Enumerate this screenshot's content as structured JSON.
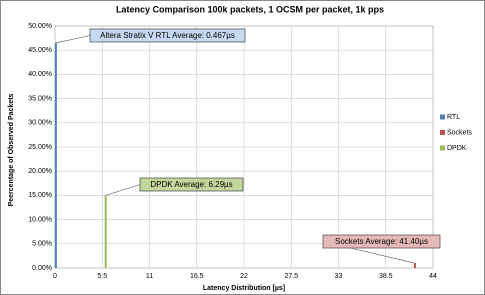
{
  "chart_data": {
    "type": "bar",
    "title": "Latency Comparison 100k packets, 1 OCSM per packet, 1k pps",
    "x_label": "Latency Distribution [µs]",
    "y_label": "Peercentage of Observed Packets",
    "series": [
      {
        "name": "RTL",
        "color": "#4f81bd",
        "x": [
          0.1
        ],
        "values": [
          46.5
        ],
        "annotation": "Altera Stratix V RTL Average: 0.467µs",
        "annotation_color": "#c6d9f1"
      },
      {
        "name": "Sockets",
        "color": "#c0504d",
        "x": [
          41.9
        ],
        "values": [
          1
        ],
        "annotation": "Sockets Average: 41.40µs",
        "annotation_color": "#e6b9b8"
      },
      {
        "name": "DPDK",
        "color": "#9bbb59",
        "x": [
          5.9
        ],
        "values": [
          15
        ],
        "annotation": "DPDK Average: 6.29µs",
        "annotation_color": "#c3d69b"
      }
    ],
    "xlim": [
      0,
      44
    ],
    "xticks": [
      0,
      5.5,
      11,
      16.5,
      22,
      27.5,
      33,
      38.5,
      44
    ],
    "ylim": [
      0,
      50
    ],
    "yticks": [
      {
        "value": 0,
        "label": "0.00%"
      },
      {
        "value": 5,
        "label": "5.00%"
      },
      {
        "value": 10,
        "label": "10.00%"
      },
      {
        "value": 15,
        "label": "15.00%"
      },
      {
        "value": 20,
        "label": "20.00%"
      },
      {
        "value": 25,
        "label": "25.00%"
      },
      {
        "value": 30,
        "label": "30.00%"
      },
      {
        "value": 35,
        "label": "35.00%"
      },
      {
        "value": 40,
        "label": "40.00%"
      },
      {
        "value": 45,
        "label": "45.00%"
      },
      {
        "value": 50,
        "label": "50.00%"
      }
    ],
    "grid": true,
    "legend": "right"
  }
}
